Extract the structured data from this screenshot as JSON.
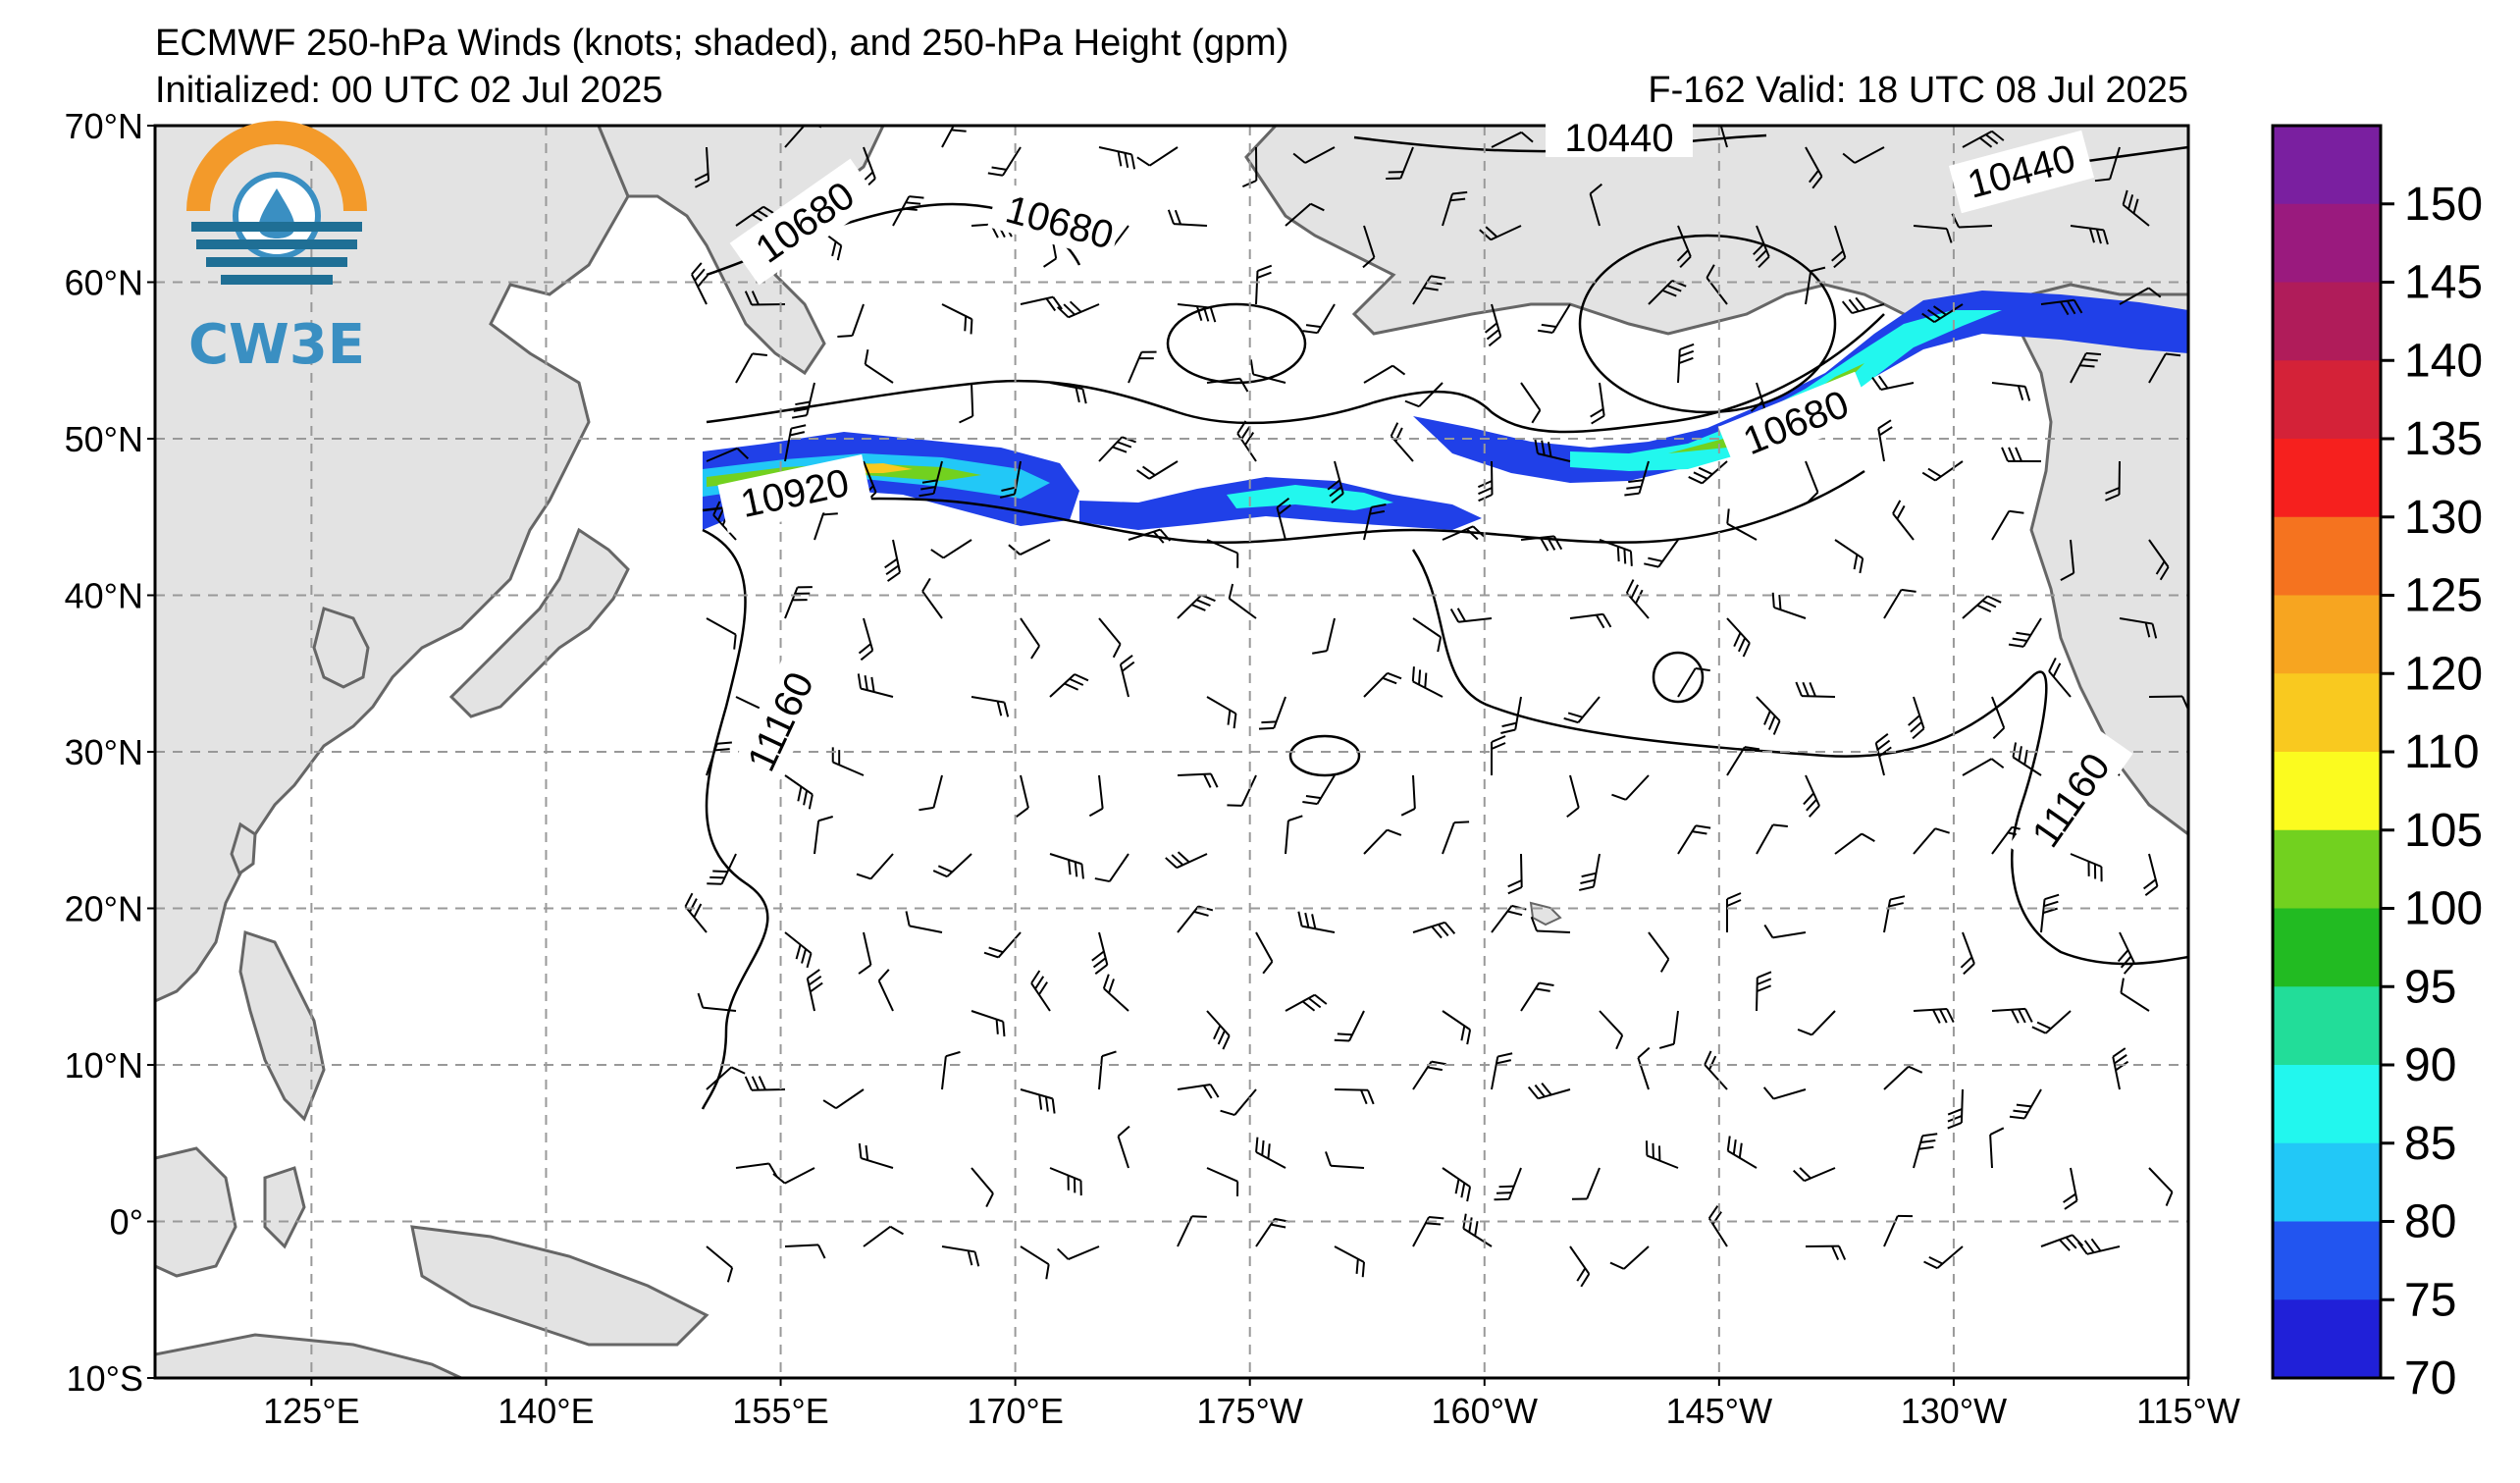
{
  "header": {
    "title": "ECMWF 250-hPa Winds (knots; shaded), and 250-hPa Height (gpm)",
    "initialized": "Initialized: 00 UTC 02 Jul 2025",
    "valid": "F-162  Valid: 18 UTC 08 Jul 2025"
  },
  "logo": {
    "text": "CW3E"
  },
  "axes": {
    "lat_labels": [
      "70°N",
      "60°N",
      "50°N",
      "40°N",
      "30°N",
      "20°N",
      "10°N",
      "0°",
      "10°S"
    ],
    "lon_labels": [
      "125°E",
      "140°E",
      "155°E",
      "170°E",
      "175°W",
      "160°W",
      "145°W",
      "130°W",
      "115°W"
    ],
    "lat_range": [
      -10,
      70
    ],
    "lon_range": [
      115,
      245
    ]
  },
  "contour_labels": [
    "10680",
    "10680",
    "10440",
    "10440",
    "10920",
    "10680",
    "11160",
    "11160"
  ],
  "colorbar": {
    "labels": [
      "150",
      "145",
      "140",
      "135",
      "130",
      "125",
      "120",
      "110",
      "105",
      "100",
      "95",
      "90",
      "85",
      "80",
      "75",
      "70"
    ],
    "colors": [
      "#7a1fa0",
      "#9a1a7e",
      "#b01c5a",
      "#d42238",
      "#f6201e",
      "#f5731f",
      "#f7a520",
      "#f9c91f",
      "#fbfb1f",
      "#72d11f",
      "#22bb22",
      "#22dd99",
      "#22f7ee",
      "#22c8f7",
      "#2255f0",
      "#2020d8"
    ]
  },
  "colors": {
    "land": "#e3e3e3",
    "coast": "#666666",
    "grid": "#999999",
    "jet_core_blue": "#2040e8"
  }
}
